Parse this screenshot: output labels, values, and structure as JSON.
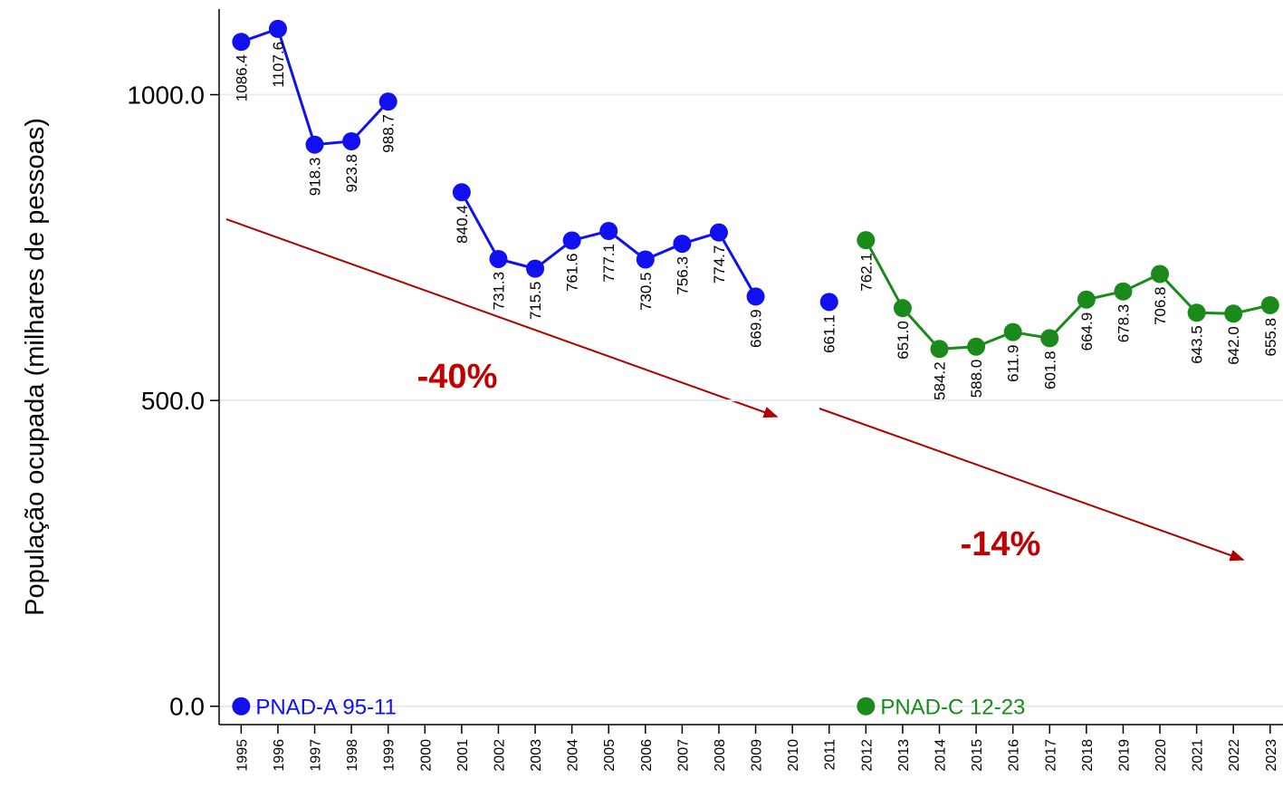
{
  "chart_data": {
    "type": "line",
    "y_label": "População ocupada (milhares de pessoas)",
    "x": [
      1995,
      1996,
      1997,
      1998,
      1999,
      2000,
      2001,
      2002,
      2003,
      2004,
      2005,
      2006,
      2007,
      2008,
      2009,
      2010,
      2011,
      2012,
      2013,
      2014,
      2015,
      2016,
      2017,
      2018,
      2019,
      2020,
      2021,
      2022,
      2023
    ],
    "xlim": [
      1994.4,
      2023.35
    ],
    "xticks": [
      1995,
      1996,
      1997,
      1998,
      1999,
      2000,
      2001,
      2002,
      2003,
      2004,
      2005,
      2006,
      2007,
      2008,
      2009,
      2010,
      2011,
      2012,
      2013,
      2014,
      2015,
      2016,
      2017,
      2018,
      2019,
      2020,
      2021,
      2022,
      2023
    ],
    "ylim": [
      -30,
      1140
    ],
    "yticks": [
      {
        "value": 0,
        "label": "0.0"
      },
      {
        "value": 500,
        "label": "500.0"
      },
      {
        "value": 1000,
        "label": "1000.0"
      }
    ],
    "grid": true,
    "series": [
      {
        "name": "PNAD-A 95-11",
        "color": "#1010f0",
        "values": [
          1086.4,
          1107.6,
          918.3,
          923.8,
          988.7,
          null,
          840.4,
          731.3,
          715.5,
          761.6,
          777.1,
          730.5,
          756.3,
          774.7,
          669.9,
          null,
          661.1,
          null,
          null,
          null,
          null,
          null,
          null,
          null,
          null,
          null,
          null,
          null,
          null
        ]
      },
      {
        "name": "PNAD-C 12-23",
        "color": "#1a8a1a",
        "values": [
          null,
          null,
          null,
          null,
          null,
          null,
          null,
          null,
          null,
          null,
          null,
          null,
          null,
          null,
          null,
          null,
          null,
          762.1,
          651.0,
          584.2,
          588.0,
          611.9,
          601.8,
          664.9,
          678.3,
          706.8,
          643.5,
          642.0,
          655.8
        ],
        "value_labels": [
          null,
          null,
          null,
          null,
          null,
          null,
          null,
          null,
          null,
          null,
          null,
          null,
          null,
          null,
          null,
          null,
          null,
          "762.1",
          "651.0",
          "584.2",
          "588.0",
          "611.9",
          "601.8",
          "664.9",
          "678.3",
          "706.8",
          "643.5",
          "642.0",
          "655.8"
        ]
      }
    ],
    "annotations": [
      "-40%",
      "-14%"
    ]
  }
}
